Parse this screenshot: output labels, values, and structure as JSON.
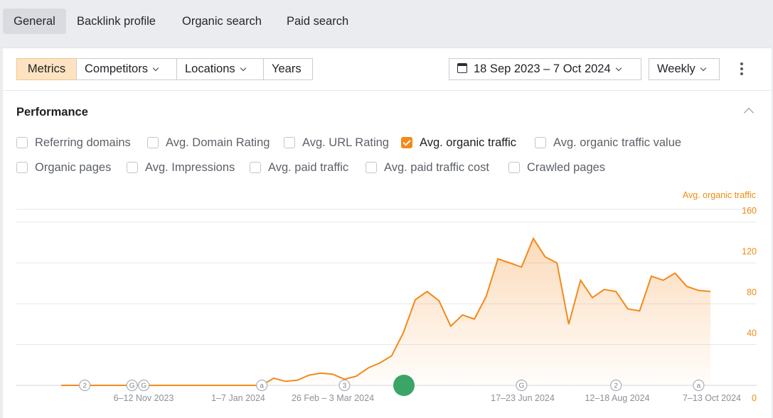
{
  "top_tabs": [
    {
      "label": "General",
      "active": true
    },
    {
      "label": "Backlink profile",
      "active": false
    },
    {
      "label": "Organic search",
      "active": false
    },
    {
      "label": "Paid search",
      "active": false
    }
  ],
  "toolbar": {
    "metrics_label": "Metrics",
    "competitors_label": "Competitors",
    "locations_label": "Locations",
    "years_label": "Years",
    "date_range": "18 Sep 2023 – 7 Oct 2024",
    "interval": "Weekly",
    "icons": {
      "calendar": "calendar-icon",
      "more": "kebab-menu-icon"
    }
  },
  "performance": {
    "title": "Performance",
    "checkboxes_row1": [
      {
        "label": "Referring domains",
        "checked": false
      },
      {
        "label": "Avg. Domain Rating",
        "checked": false
      },
      {
        "label": "Avg. URL Rating",
        "checked": false
      },
      {
        "label": "Avg. organic traffic",
        "checked": true
      },
      {
        "label": "Avg. organic traffic value",
        "checked": false
      }
    ],
    "checkboxes_row2": [
      {
        "label": "Organic pages",
        "checked": false
      },
      {
        "label": "Avg. Impressions",
        "checked": false
      },
      {
        "label": "Avg. paid traffic",
        "checked": false
      },
      {
        "label": "Avg. paid traffic cost",
        "checked": false
      },
      {
        "label": "Crawled pages",
        "checked": false
      }
    ]
  },
  "colors": {
    "accent": "#f4891a",
    "highlight_dot": "#3aa566",
    "grid": "#e6e7ea"
  },
  "chart_data": {
    "type": "area",
    "ylabel": "Avg. organic traffic",
    "ylim": [
      0,
      160
    ],
    "yticks": [
      0,
      40,
      80,
      120,
      160
    ],
    "grid": true,
    "x_labels": [
      "6–12 Nov 2023",
      "1–7 Jan 2024",
      "26 Feb – 3 Mar 2024",
      "17–23 Jun 2024",
      "12–18 Aug 2024",
      "7–13 Oct 2024"
    ],
    "series": [
      {
        "name": "Avg. organic traffic",
        "values": [
          0,
          0,
          0,
          0,
          0,
          0,
          0,
          0,
          0,
          0,
          0,
          0,
          0,
          0,
          0,
          0,
          0,
          0,
          7,
          4,
          5,
          10,
          12,
          11,
          6,
          9,
          17,
          22,
          29,
          52,
          84,
          92,
          83,
          58,
          69,
          65,
          87,
          124,
          120,
          116,
          144,
          126,
          120,
          60,
          103,
          86,
          94,
          92,
          75,
          73,
          107,
          103,
          110,
          97,
          93,
          92
        ]
      }
    ],
    "event_markers": [
      {
        "label": "2"
      },
      {
        "label": "G"
      },
      {
        "label": "G"
      },
      {
        "label": "a"
      },
      {
        "label": "3"
      },
      {
        "label": "G"
      },
      {
        "label": "2"
      },
      {
        "label": "a"
      }
    ]
  }
}
